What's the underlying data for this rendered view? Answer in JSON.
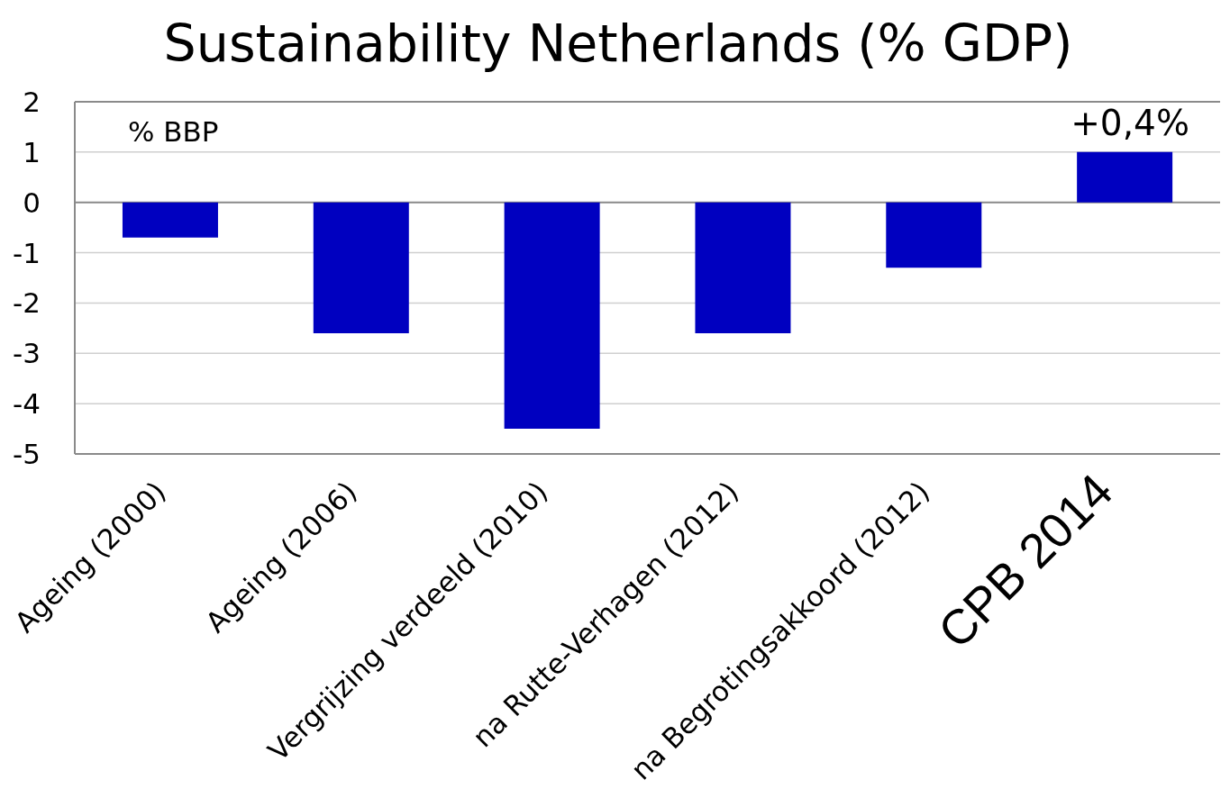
{
  "chart_data": {
    "type": "bar",
    "title": "Sustainability Netherlands (% GDP)",
    "ylabel": "% BBP",
    "categories": [
      "Ageing (2000)",
      "Ageing (2006)",
      "Vergrijzing verdeeld (2010)",
      "na Rutte-Verhagen (2012)",
      "na Begrotingsakkoord (2012)",
      "CPB 2014"
    ],
    "values": [
      -0.7,
      -2.6,
      -4.5,
      -2.6,
      -1.3,
      1.0
    ],
    "color": "#0000c0",
    "ylim": [
      -5,
      2
    ],
    "yticks": [
      -5,
      -4,
      -3,
      -2,
      -1,
      0,
      1,
      2
    ],
    "grid": "y",
    "annotations": [
      {
        "text": "+0,4%",
        "x": "CPB 2014",
        "y": 1
      }
    ]
  }
}
